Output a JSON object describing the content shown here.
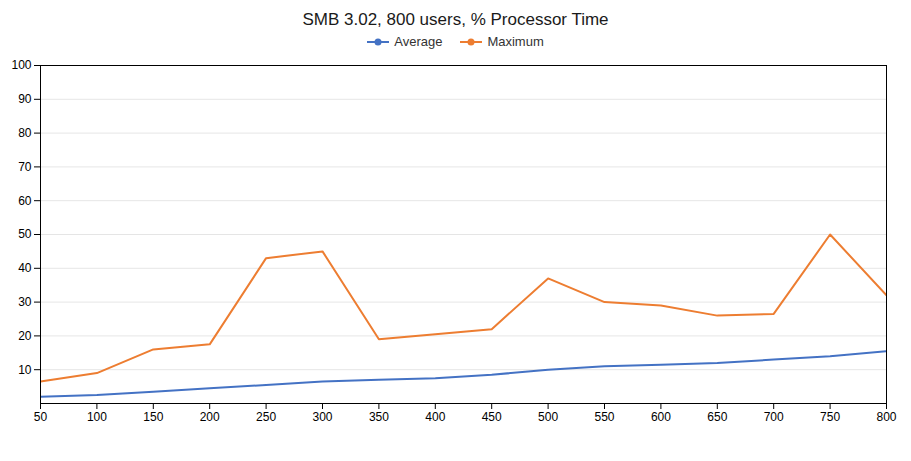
{
  "chart_data": {
    "type": "line",
    "title": "SMB 3.02, 800 users, % Processor Time",
    "x": [
      50,
      100,
      150,
      200,
      250,
      300,
      350,
      400,
      450,
      500,
      550,
      600,
      650,
      700,
      750,
      800
    ],
    "series": [
      {
        "name": "Average",
        "color": "#4472C4",
        "values": [
          2,
          2.5,
          3.5,
          4.5,
          5.5,
          6.5,
          7,
          7.5,
          8.5,
          10,
          11,
          11.5,
          12,
          13,
          14,
          15.5
        ]
      },
      {
        "name": "Maximum",
        "color": "#ED7D31",
        "values": [
          6.5,
          9,
          16,
          17.5,
          43,
          45,
          19,
          20.5,
          22,
          37,
          30,
          29,
          26,
          26.5,
          50,
          32
        ]
      }
    ],
    "xlim": [
      50,
      800
    ],
    "xticks": [
      50,
      100,
      150,
      200,
      250,
      300,
      350,
      400,
      450,
      500,
      550,
      600,
      650,
      700,
      750,
      800
    ],
    "ylim": [
      0,
      100
    ],
    "yticks": [
      10,
      20,
      30,
      40,
      50,
      60,
      70,
      80,
      90,
      100
    ],
    "grid": true,
    "legend": "top"
  }
}
